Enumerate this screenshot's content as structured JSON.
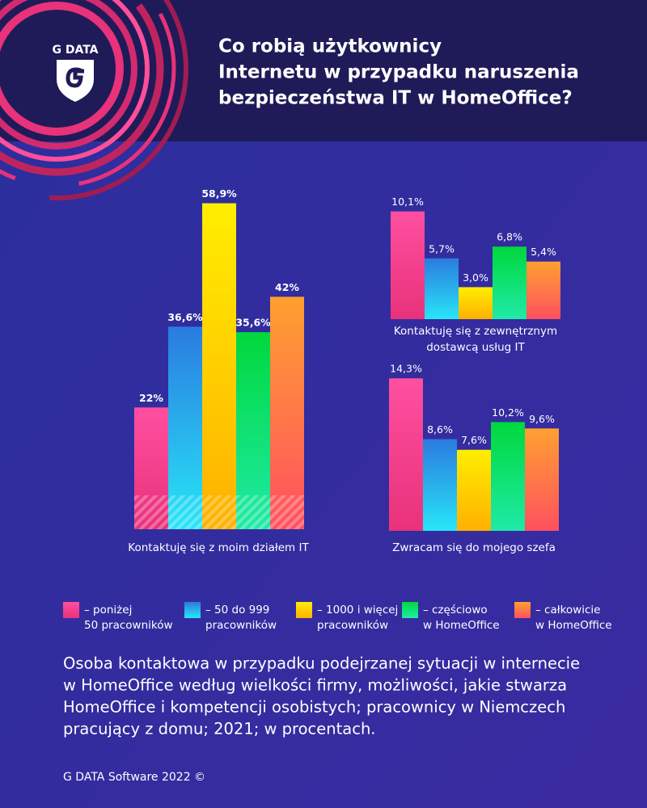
{
  "header": {
    "logo": "G DATA",
    "title_lines": [
      "Co robią użytkownicy",
      "Internetu w przypadku naruszenia",
      "bezpieczeństwa IT w HomeOffice?"
    ]
  },
  "legend": {
    "items": [
      {
        "lines": [
          "– poniżej",
          "50 pracowników"
        ],
        "colors": [
          "#ff4fa0",
          "#e8327a"
        ]
      },
      {
        "lines": [
          "– 50 do 999",
          "pracowników"
        ],
        "colors": [
          "#2a7be0",
          "#28e6f7"
        ]
      },
      {
        "lines": [
          "– 1000 i więcej",
          "pracowników"
        ],
        "colors": [
          "#ffee00",
          "#ffb000"
        ]
      },
      {
        "lines": [
          "– częściowo",
          "w HomeOffice"
        ],
        "colors": [
          "#00d83c",
          "#20eaa8"
        ]
      },
      {
        "lines": [
          "– całkowicie",
          "w HomeOffice"
        ],
        "colors": [
          "#ffa030",
          "#ff5060"
        ]
      }
    ]
  },
  "description_lines": [
    "Osoba kontaktowa w przypadku podejrzanej sytuacji w internecie",
    "w HomeOffice według wielkości firmy, możliwości, jakie stwarza",
    "HomeOffice i kompetencji osobistych; pracownicy w Niemczech",
    "pracujący z domu; 2021; w procentach."
  ],
  "footer": "G DATA Software 2022 ©",
  "chart_data": [
    {
      "type": "bar",
      "title_lines": [
        "Kontaktuję się z moim działem IT"
      ],
      "values": [
        22,
        36.6,
        58.9,
        35.6,
        42
      ],
      "value_labels": [
        "22%",
        "36,6%",
        "58,9%",
        "35,6%",
        "42%"
      ],
      "bold_labels": true,
      "hatched": true
    },
    {
      "type": "bar",
      "title_lines": [
        "Kontaktuję się z zewnętrznym",
        "dostawcą usług IT"
      ],
      "values": [
        10.1,
        5.7,
        3,
        6.8,
        5.4
      ],
      "value_labels": [
        "10,1%",
        "5,7%",
        "3,0%",
        "6,8%",
        "5,4%"
      ],
      "bold_labels": false,
      "hatched": false
    },
    {
      "type": "bar",
      "title_lines": [
        "Zwracam się do mojego szefa"
      ],
      "values": [
        14.3,
        8.6,
        7.6,
        10.2,
        9.6
      ],
      "value_labels": [
        "14,3%",
        "8,6%",
        "7,6%",
        "10,2%",
        "9,6%"
      ],
      "bold_labels": false,
      "hatched": false
    }
  ]
}
